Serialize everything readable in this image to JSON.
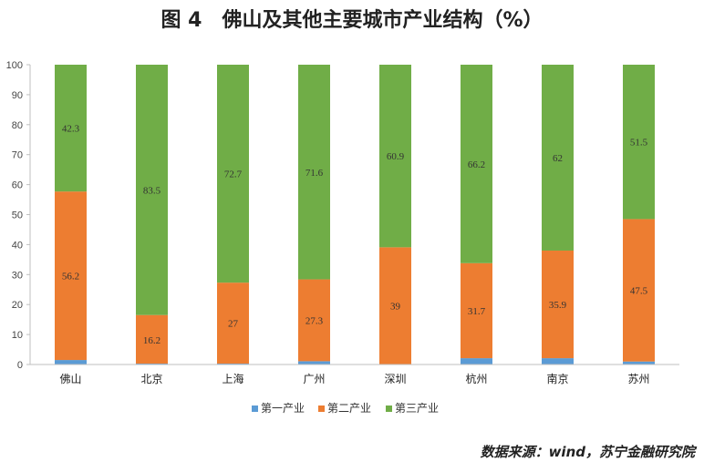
{
  "chart_data": {
    "type": "bar",
    "stacked": true,
    "title": "图 4　佛山及其他主要城市产业结构（%）",
    "categories": [
      "佛山",
      "北京",
      "上海",
      "广州",
      "深圳",
      "杭州",
      "南京",
      "苏州"
    ],
    "series": [
      {
        "name": "第一产业",
        "color": "#5b9bd5",
        "values": [
          1.5,
          0.3,
          0.3,
          1.1,
          0.1,
          2.1,
          2.1,
          1.0
        ]
      },
      {
        "name": "第二产业",
        "color": "#ed7d31",
        "values": [
          56.2,
          16.2,
          27,
          27.3,
          39,
          31.7,
          35.9,
          47.5
        ]
      },
      {
        "name": "第三产业",
        "color": "#70ad47",
        "values": [
          42.3,
          83.5,
          72.7,
          71.6,
          60.9,
          66.2,
          62,
          51.5
        ]
      }
    ],
    "data_labels": {
      "第二产业": [
        "56.2",
        "16.2",
        "27",
        "27.3",
        "39",
        "31.7",
        "35.9",
        "47.5"
      ],
      "第三产业": [
        "42.3",
        "83.5",
        "72.7",
        "71.6",
        "60.9",
        "66.2",
        "62",
        "51.5"
      ]
    },
    "yticks": [
      "0",
      "10",
      "20",
      "30",
      "40",
      "50",
      "60",
      "70",
      "80",
      "90",
      "100"
    ],
    "ylim": [
      0,
      100
    ],
    "legend_position": "bottom",
    "grid": false
  },
  "source": "数据来源：wind，苏宁金融研究院"
}
